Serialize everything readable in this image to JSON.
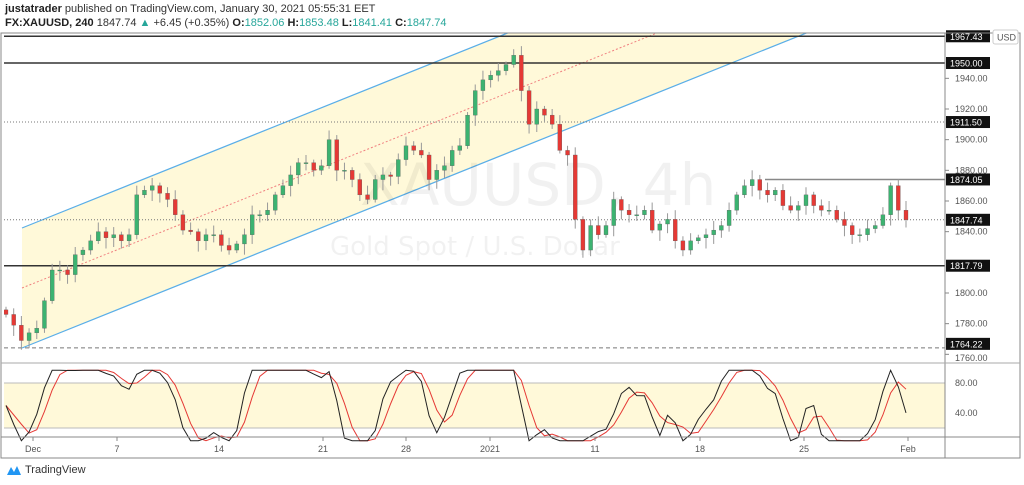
{
  "header": {
    "author": "justatrader",
    "published": "published on TradingView.com, January 30, 2021 05:55:31 EET",
    "symbol": "FX:XAUUSD, 240",
    "last": "1847.74",
    "change": "+6.45 (+0.35%)",
    "o_label": "O:",
    "o": "1852.06",
    "h_label": "H:",
    "h": "1853.48",
    "l_label": "L:",
    "l": "1841.41",
    "c_label": "C:",
    "c": "1847.74"
  },
  "watermark": {
    "symbol": "XAUUSD, 4h",
    "description": "Gold Spot / U.S. Dollar"
  },
  "currency": "USD",
  "brand": "TradingView",
  "colors": {
    "up": "#26a69a",
    "up_body": "#3cb371",
    "down": "#e53935",
    "channel": "#5aaee8",
    "channel_fill": "#fff9d9",
    "osc_k": "#222222",
    "osc_d": "#e53935"
  },
  "chart_data": {
    "type": "candlestick",
    "price_axis": {
      "ticks": [
        1940,
        1920,
        1900,
        1880,
        1860,
        1840,
        1800,
        1780,
        1760
      ],
      "range": [
        1755,
        1972
      ]
    },
    "time_axis": {
      "ticks": [
        "Dec",
        "7",
        "14",
        "21",
        "28",
        "2021",
        "11",
        "18",
        "25",
        "Feb"
      ]
    },
    "closes": [
      1786,
      1779,
      1769,
      1774,
      1777,
      1795,
      1815,
      1815,
      1812,
      1825,
      1828,
      1834,
      1840,
      1836,
      1838,
      1834,
      1838,
      1864,
      1867,
      1870,
      1865,
      1861,
      1851,
      1841,
      1840,
      1834,
      1838,
      1838,
      1831,
      1828,
      1832,
      1838,
      1851,
      1851,
      1854,
      1864,
      1870,
      1877,
      1885,
      1885,
      1880,
      1883,
      1900,
      1880,
      1880,
      1874,
      1864,
      1861,
      1874,
      1877,
      1876,
      1887,
      1896,
      1893,
      1890,
      1874,
      1880,
      1883,
      1893,
      1896,
      1916,
      1932,
      1939,
      1942,
      1945,
      1949,
      1955,
      1932,
      1910,
      1920,
      1916,
      1910,
      1893,
      1890,
      1848,
      1828,
      1844,
      1838,
      1844,
      1861,
      1854,
      1851,
      1851,
      1854,
      1841,
      1845,
      1848,
      1834,
      1828,
      1834,
      1836,
      1838,
      1841,
      1844,
      1854,
      1864,
      1870,
      1874,
      1867,
      1864,
      1867,
      1857,
      1854,
      1857,
      1864,
      1857,
      1854,
      1854,
      1848,
      1844,
      1838,
      1838,
      1842,
      1844,
      1851,
      1870,
      1854,
      1847.74
    ],
    "levels": [
      {
        "price": "1967.43",
        "style": "solid"
      },
      {
        "price": "1950.00",
        "style": "solid"
      },
      {
        "price": "1911.50",
        "style": "dotted"
      },
      {
        "price": "1874.05",
        "style": "solid"
      },
      {
        "price": "1847.74",
        "style": "dotted"
      },
      {
        "price": "1817.79",
        "style": "solid"
      },
      {
        "price": "1764.22",
        "style": "dashed"
      }
    ],
    "oscillator": {
      "ticks": [
        "80.00",
        "40.00"
      ],
      "band": [
        20,
        80
      ]
    }
  }
}
